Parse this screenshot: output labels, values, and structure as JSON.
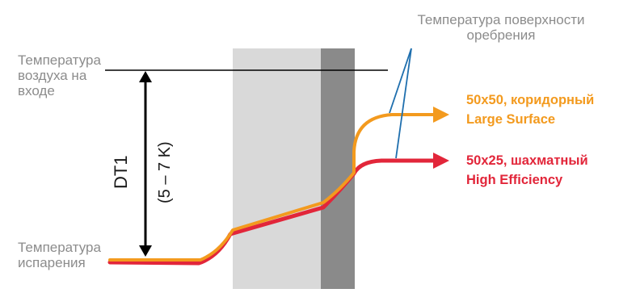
{
  "labels": {
    "surface_temp": "Температура поверхности\nоребрения",
    "air_inlet_temp": "Температура\nвоздуха на\nвходе",
    "evaporation_temp": "Температура\nиспарения",
    "dt1": "DT1",
    "dt1_range": "(5 – 7 K)"
  },
  "legend": [
    {
      "title": "50x50, коридорный",
      "subtitle": "Large Surface",
      "color": "#f39a1e"
    },
    {
      "title": "50x25, шахматный",
      "subtitle": "High Efficiency",
      "color": "#e2263a"
    }
  ],
  "colors": {
    "wall_light": "#d9d9d9",
    "wall_dark": "#8a8a8a",
    "line_black": "#000000",
    "pointer_blue": "#1f6fae"
  }
}
